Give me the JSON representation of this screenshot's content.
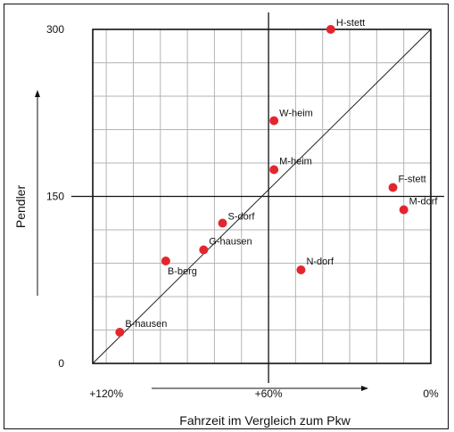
{
  "chart_data": {
    "type": "scatter",
    "title": "",
    "xlabel": "Fahrzeit im Vergleich zum Pkw",
    "ylabel": "Pendler",
    "x_axis_reversed": true,
    "xlim": [
      125,
      0
    ],
    "ylim": [
      0,
      300
    ],
    "x_ticks": [
      {
        "value": 120,
        "label": "+120%"
      },
      {
        "value": 60,
        "label": "+60%"
      },
      {
        "value": 0,
        "label": "0%"
      }
    ],
    "y_ticks": [
      {
        "value": 0,
        "label": "0"
      },
      {
        "value": 150,
        "label": "150"
      },
      {
        "value": 300,
        "label": "300"
      }
    ],
    "grid": true,
    "grid_step_x": 10,
    "grid_step_y": 30,
    "center_lines": {
      "x": 60,
      "y": 150
    },
    "diagonal": true,
    "point_color": "#e3262d",
    "points": [
      {
        "name": "H-stett",
        "x": 37,
        "y": 300
      },
      {
        "name": "W-heim",
        "x": 58,
        "y": 218
      },
      {
        "name": "M-heim",
        "x": 58,
        "y": 174
      },
      {
        "name": "F-stett",
        "x": 14,
        "y": 158
      },
      {
        "name": "M-dorf",
        "x": 10,
        "y": 138
      },
      {
        "name": "S-dorf",
        "x": 77,
        "y": 126
      },
      {
        "name": "G-hausen",
        "x": 84,
        "y": 102
      },
      {
        "name": "B-berg",
        "x": 98,
        "y": 92
      },
      {
        "name": "N-dorf",
        "x": 48,
        "y": 84
      },
      {
        "name": "B-hausen",
        "x": 115,
        "y": 28
      }
    ]
  }
}
